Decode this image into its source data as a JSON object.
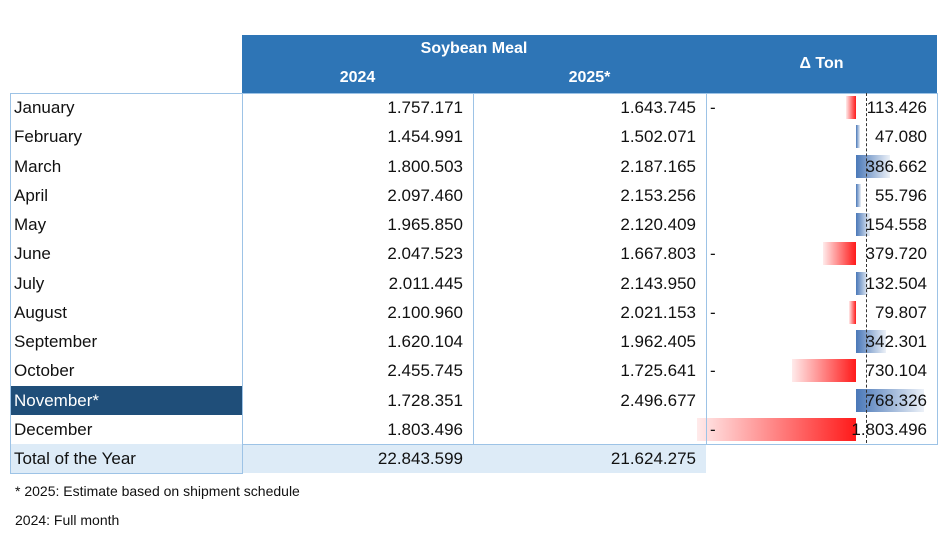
{
  "header": {
    "group": "Soybean Meal",
    "col_2024": "2024",
    "col_2025": "2025*",
    "delta": "Δ Ton"
  },
  "rows": [
    {
      "month": "January",
      "y2024": "1.757.171",
      "y2025": "1.643.745",
      "delta": "113.426",
      "sign": "-",
      "value": -113426
    },
    {
      "month": "February",
      "y2024": "1.454.991",
      "y2025": "1.502.071",
      "delta": "47.080",
      "sign": "",
      "value": 47080
    },
    {
      "month": "March",
      "y2024": "1.800.503",
      "y2025": "2.187.165",
      "delta": "386.662",
      "sign": "",
      "value": 386662
    },
    {
      "month": "April",
      "y2024": "2.097.460",
      "y2025": "2.153.256",
      "delta": "55.796",
      "sign": "",
      "value": 55796
    },
    {
      "month": "May",
      "y2024": "1.965.850",
      "y2025": "2.120.409",
      "delta": "154.558",
      "sign": "",
      "value": 154558
    },
    {
      "month": "June",
      "y2024": "2.047.523",
      "y2025": "1.667.803",
      "delta": "379.720",
      "sign": "-",
      "value": -379720
    },
    {
      "month": "July",
      "y2024": "2.011.445",
      "y2025": "2.143.950",
      "delta": "132.504",
      "sign": "",
      "value": 132504
    },
    {
      "month": "August",
      "y2024": "2.100.960",
      "y2025": "2.021.153",
      "delta": "79.807",
      "sign": "-",
      "value": -79807
    },
    {
      "month": "September",
      "y2024": "1.620.104",
      "y2025": "1.962.405",
      "delta": "342.301",
      "sign": "",
      "value": 342301
    },
    {
      "month": "October",
      "y2024": "2.455.745",
      "y2025": "1.725.641",
      "delta": "730.104",
      "sign": "-",
      "value": -730104
    },
    {
      "month": "November*",
      "y2024": "1.728.351",
      "y2025": "2.496.677",
      "delta": "768.326",
      "sign": "",
      "value": 768326
    },
    {
      "month": "December",
      "y2024": "1.803.496",
      "y2025": "",
      "delta": "1.803.496",
      "sign": "-",
      "value": -1803496
    }
  ],
  "total": {
    "label": "Total of the Year",
    "y2024": "22.843.599",
    "y2025": "21.624.275"
  },
  "notes": {
    "line1": "* 2025: Estimate based on shipment schedule",
    "line2": "2024: Full month"
  },
  "colors": {
    "header": "#2e75b6",
    "selected": "#1f4e79",
    "negative": "#ff1a1a",
    "positive": "#4a78b8"
  }
}
